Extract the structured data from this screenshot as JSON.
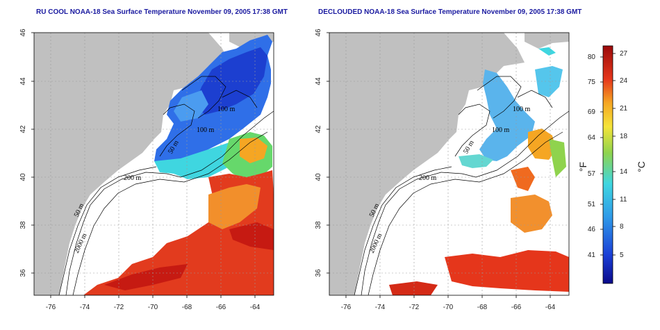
{
  "left_panel": {
    "title": "RU COOL NOAA-18 Sea Surface Temperature November 09, 2005 17:38 GMT"
  },
  "right_panel": {
    "title": "DECLOUDED NOAA-18 Sea Surface Temperature November 09, 2005 17:38 GMT"
  },
  "axes": {
    "x_ticks": [
      "-76",
      "-74",
      "-72",
      "-70",
      "-68",
      "-66",
      "-64"
    ],
    "y_ticks": [
      "46",
      "44",
      "42",
      "40",
      "38",
      "36"
    ]
  },
  "contours": {
    "c100": "100 m",
    "c50": "50 m",
    "c200": "200 m",
    "c2000": "2000 m"
  },
  "colorbar": {
    "f_unit": "°F",
    "c_unit": "°C",
    "f_ticks": [
      "80",
      "75",
      "69",
      "64",
      "57",
      "51",
      "46",
      "41"
    ],
    "c_ticks": [
      "27",
      "24",
      "21",
      "18",
      "14",
      "11",
      "8",
      "5"
    ]
  },
  "colors": {
    "land": "#c0c0c0",
    "grid": "#9a9a9a",
    "title": "#1a1aa0"
  }
}
